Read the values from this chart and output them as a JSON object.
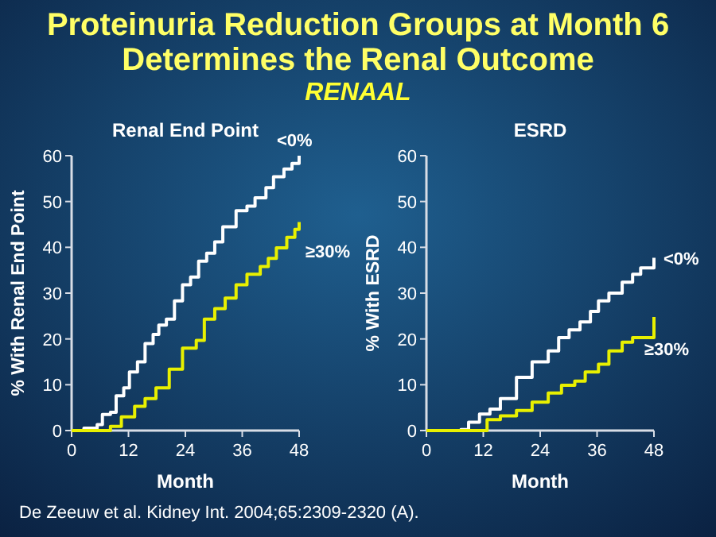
{
  "chart_data": [
    {
      "type": "other",
      "title": "Proteinuria Reduction Groups at Month 6\nDetermines the Renal Outcome",
      "subtitle": "RENAAL",
      "annotations": [
        "De Zeeuw et al. Kidney Int. 2004;65:2309-2320 (A)."
      ]
    },
    {
      "type": "step",
      "title": "Renal End Point",
      "xlabel": "Month",
      "ylabel": "% With Renal End Point",
      "xlim": [
        0,
        48
      ],
      "xticks": [
        0,
        12,
        24,
        36,
        48
      ],
      "ylim": [
        0,
        60
      ],
      "yticks": [
        0,
        10,
        20,
        30,
        40,
        50,
        60
      ],
      "grid": false,
      "series": [
        {
          "name": "<0%",
          "color": "#ffffff",
          "x": [
            0,
            2.6,
            5.4,
            6.5,
            8.2,
            9.4,
            11,
            12.2,
            13.9,
            15.5,
            17.2,
            18.4,
            20,
            21.7,
            23.4,
            25.1,
            26.8,
            28.5,
            30.2,
            31.9,
            34.7,
            37,
            38.7,
            41,
            42.6,
            44.8,
            46.5,
            48,
            48
          ],
          "values": [
            0,
            0.5,
            1.3,
            3.5,
            4,
            7.6,
            9.3,
            12.8,
            15,
            19,
            21,
            23,
            24.3,
            28.3,
            31.8,
            33.5,
            37,
            38.7,
            41.2,
            44.5,
            48,
            49,
            50.8,
            53,
            55.4,
            57.1,
            58.3,
            58.9,
            60
          ]
        },
        {
          "name": "≥30%",
          "color": "#e8f000",
          "x": [
            0,
            4.3,
            8.2,
            10.5,
            13.3,
            15.5,
            17.8,
            20.6,
            23.4,
            26.3,
            28,
            30.2,
            32.4,
            34.7,
            37,
            39.8,
            41.5,
            43.2,
            45.4,
            47.1,
            48,
            48
          ],
          "values": [
            0,
            0,
            0.9,
            3,
            5.3,
            7,
            9.3,
            13.4,
            18,
            19.7,
            24.3,
            26.6,
            28.9,
            31.8,
            34.1,
            35.8,
            37.6,
            39.9,
            42.2,
            43.9,
            44.5,
            45.5
          ]
        }
      ]
    },
    {
      "type": "step",
      "title": "ESRD",
      "xlabel": "Month",
      "ylabel": "% With ESRD",
      "xlim": [
        0,
        48
      ],
      "xticks": [
        0,
        12,
        24,
        36,
        48
      ],
      "ylim": [
        0,
        60
      ],
      "yticks": [
        0,
        10,
        20,
        30,
        40,
        50,
        60
      ],
      "grid": false,
      "series": [
        {
          "name": "<0%",
          "color": "#ffffff",
          "x": [
            0,
            7.3,
            8.9,
            11.2,
            13.4,
            15.6,
            19,
            22.3,
            25.7,
            27.9,
            30.1,
            32.4,
            34.6,
            36.3,
            38.5,
            41.3,
            43.5,
            45.2,
            48,
            48
          ],
          "values": [
            0,
            0.2,
            1.8,
            3.6,
            4.7,
            7,
            11.6,
            15,
            17.4,
            20.3,
            22,
            23.7,
            26,
            28.3,
            30,
            32.4,
            34.1,
            35.5,
            35.5,
            37.7
          ]
        },
        {
          "name": "≥30%",
          "color": "#e8f000",
          "x": [
            0,
            9.5,
            12.8,
            15.6,
            19,
            22.3,
            25.7,
            28.5,
            31.3,
            33.5,
            36.3,
            38.5,
            41.3,
            43.5,
            45.2,
            48,
            48
          ],
          "values": [
            0,
            0,
            2.4,
            3.2,
            4.4,
            6.2,
            8.2,
            9.9,
            10.8,
            12.8,
            14.5,
            17.4,
            19.3,
            20.3,
            20.3,
            20.3,
            24.8
          ]
        }
      ]
    }
  ]
}
